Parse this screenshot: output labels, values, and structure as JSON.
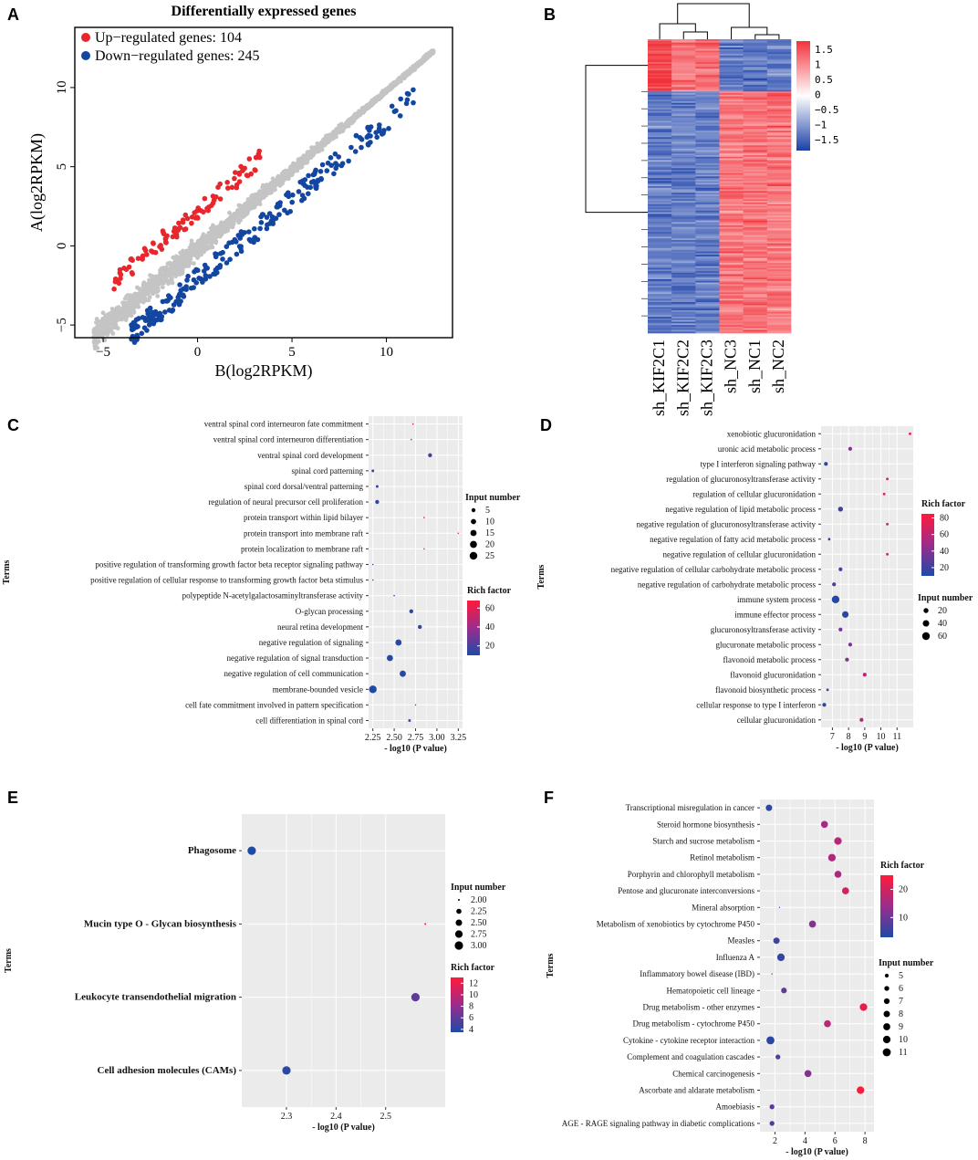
{
  "figure": {
    "panel_labels": [
      "A",
      "B",
      "C",
      "D",
      "E",
      "F"
    ],
    "colors": {
      "up": "#e8272d",
      "down": "#1246a0",
      "unchanged": "#c4c4c4",
      "panel_bg": "#ebebeb",
      "grid": "#ffffff",
      "rich_low": "#1e4aa5",
      "rich_mid": "#9b2c8c",
      "rich_high": "#ff1a3a"
    }
  },
  "chart_data": [
    {
      "id": "A",
      "type": "scatter",
      "title": "Differentially expressed genes",
      "xlabel": "B(log2RPKM)",
      "ylabel": "A(log2RPKM)",
      "xlim": [
        -6.5,
        13.5
      ],
      "ylim": [
        -5.8,
        13.8
      ],
      "xticks": [
        -5,
        0,
        5,
        10
      ],
      "yticks": [
        -5,
        0,
        5,
        10
      ],
      "legend": [
        {
          "label": "Up−regulated genes: 104",
          "color": "#e8272d"
        },
        {
          "label": "Down−regulated genes: 245",
          "color": "#1246a0"
        }
      ],
      "series": [
        {
          "name": "Up-regulated",
          "count": 104
        },
        {
          "name": "Down-regulated",
          "count": 245
        }
      ]
    },
    {
      "id": "B",
      "type": "heatmap",
      "columns": [
        "sh_KIF2C1",
        "sh_KIF2C2",
        "sh_KIF2C3",
        "sh_NC3",
        "sh_NC1",
        "sh_NC2"
      ],
      "colorbar_ticks": [
        "1.5",
        "1",
        "0.5",
        "0",
        "−0.5",
        "−1",
        "−1.5"
      ],
      "range": [
        -1.5,
        1.5
      ],
      "row_clusters": [
        {
          "name": "up-in-KIF2C",
          "share": 0.18,
          "group_means": [
            1.3,
            1.0,
            -1.0
          ]
        },
        {
          "name": "down-in-KIF2C",
          "share": 0.82,
          "group_means": [
            -1.0,
            1.0
          ]
        }
      ]
    },
    {
      "id": "C",
      "type": "scatter",
      "xlabel": "- log10 (P value)",
      "ylabel": "Terms",
      "xlim": [
        2.2,
        3.3
      ],
      "xticks": [
        "2.25",
        "2.50",
        "2.75",
        "3.00",
        "3.25"
      ],
      "xtick_values": [
        2.25,
        2.5,
        2.75,
        3.0,
        3.25
      ],
      "size_legend_title": "Input number",
      "size_legend": [
        5,
        10,
        15,
        20,
        25
      ],
      "size_range": [
        1,
        25
      ],
      "color_legend_title": "Rich factor",
      "color_ticks": [
        60,
        40,
        20
      ],
      "color_range": [
        10,
        68
      ],
      "terms": [
        "ventral spinal cord interneuron fate commitment",
        "ventral spinal cord interneuron differentiation",
        "ventral spinal cord development",
        "spinal cord patterning",
        "spinal cord dorsal/ventral patterning",
        "regulation of neural precursor cell proliferation",
        "protein transport within lipid bilayer",
        "protein transport into membrane raft",
        "protein localization to membrane raft",
        "positive regulation of transforming growth factor beta receptor signaling pathway",
        "positive regulation of cellular response to transforming growth factor beta stimulus",
        "polypeptide N-acetylgalactosaminyltransferase activity",
        "O-glycan processing",
        "neural retina development",
        "negative regulation of signaling",
        "negative regulation of signal transduction",
        "negative regulation of cell communication",
        "membrane-bounded vesicle",
        "cell fate commitment involved in pattern specification",
        "cell differentiation in spinal cord"
      ],
      "x": [
        2.72,
        2.7,
        2.92,
        2.25,
        2.3,
        2.3,
        2.85,
        3.25,
        2.85,
        2.25,
        2.25,
        2.5,
        2.7,
        2.8,
        2.55,
        2.45,
        2.6,
        2.25,
        2.75,
        2.68
      ],
      "size": [
        1,
        1,
        5,
        2,
        2,
        5,
        1,
        1,
        1,
        1,
        1,
        1,
        5,
        5,
        15,
        15,
        15,
        25,
        1,
        2
      ],
      "rich": [
        55,
        50,
        18,
        15,
        15,
        15,
        60,
        68,
        60,
        15,
        15,
        25,
        15,
        15,
        12,
        12,
        12,
        10,
        40,
        25
      ]
    },
    {
      "id": "D",
      "type": "scatter",
      "xlabel": "- log10 (P value)",
      "ylabel": "Terms",
      "xlim": [
        6.3,
        12
      ],
      "xticks": [
        "7",
        "8",
        "9",
        "10",
        "11"
      ],
      "xtick_values": [
        7,
        8,
        9,
        10,
        11
      ],
      "size_legend_title": "Input number",
      "size_legend": [
        20,
        40,
        60
      ],
      "size_range": [
        1,
        60
      ],
      "color_legend_title": "Rich factor",
      "color_ticks": [
        80,
        60,
        40,
        20
      ],
      "color_range": [
        10,
        85
      ],
      "terms": [
        "xenobiotic glucuronidation",
        "uronic acid metabolic process",
        "type I interferon signaling pathway",
        "regulation of glucuronosyltransferase activity",
        "regulation of cellular glucuronidation",
        "negative regulation of lipid metabolic process",
        "negative regulation of glucuronosyltransferase activity",
        "negative regulation of fatty acid metabolic process",
        "negative regulation of cellular glucuronidation",
        "negative regulation of cellular carbohydrate metabolic process",
        "negative regulation of carbohydrate metabolic process",
        "immune system process",
        "immune effector process",
        "glucuronosyltransferase activity",
        "glucuronate metabolic process",
        "flavonoid metabolic process",
        "flavonoid glucuronidation",
        "flavonoid biosynthetic process",
        "cellular response to type I interferon",
        "cellular glucuronidation"
      ],
      "x": [
        11.8,
        8.1,
        6.6,
        10.4,
        10.2,
        7.5,
        10.4,
        6.8,
        10.4,
        7.5,
        7.1,
        7.2,
        7.8,
        7.5,
        8.1,
        7.9,
        9.0,
        6.7,
        6.5,
        8.8
      ],
      "size": [
        3,
        10,
        10,
        3,
        3,
        20,
        3,
        3,
        3,
        10,
        10,
        60,
        40,
        10,
        10,
        10,
        10,
        3,
        10,
        10
      ],
      "rich": [
        80,
        40,
        15,
        75,
        75,
        20,
        75,
        25,
        75,
        20,
        25,
        12,
        15,
        35,
        40,
        40,
        60,
        25,
        15,
        55
      ]
    },
    {
      "id": "E",
      "type": "scatter",
      "xlabel": "- log10 (P value)",
      "ylabel": "Terms",
      "xlim": [
        2.21,
        2.62
      ],
      "xticks": [
        "2.3",
        "2.4",
        "2.5"
      ],
      "xtick_values": [
        2.3,
        2.4,
        2.5
      ],
      "size_legend_title": "Input number",
      "size_legend": [
        "2.00",
        "2.25",
        "2.50",
        "2.75",
        "3.00"
      ],
      "size_range": [
        2,
        3
      ],
      "color_legend_title": "Rich factor",
      "color_ticks": [
        12,
        10,
        8,
        6,
        4
      ],
      "color_range": [
        3.5,
        13
      ],
      "terms": [
        "Phagosome",
        "Mucin type O - Glycan biosynthesis",
        "Leukocyte transendothelial migration",
        "Cell adhesion molecules (CAMs)"
      ],
      "x": [
        2.23,
        2.58,
        2.56,
        2.3
      ],
      "size": [
        3,
        2,
        3,
        3
      ],
      "rich": [
        3.5,
        12.5,
        6,
        4
      ]
    },
    {
      "id": "F",
      "type": "scatter",
      "xlabel": "- log10 (P value)",
      "ylabel": "Terms",
      "xlim": [
        1.0,
        8.6
      ],
      "xticks": [
        "2",
        "4",
        "6",
        "8"
      ],
      "xtick_values": [
        2,
        4,
        6,
        8
      ],
      "size_legend_title": "Input number",
      "size_legend": [
        5,
        6,
        7,
        8,
        9,
        10,
        11
      ],
      "size_range": [
        4,
        11
      ],
      "color_legend_title": "Rich factor",
      "color_ticks": [
        20,
        10
      ],
      "color_range": [
        3,
        25
      ],
      "terms": [
        "Transcriptional misregulation in cancer",
        "Steroid hormone biosynthesis",
        "Starch and sucrose metabolism",
        "Retinol metabolism",
        "Porphyrin and chlorophyll metabolism",
        "Pentose and glucuronate interconversions",
        "Mineral absorption",
        "Metabolism of xenobiotics by cytochrome P450",
        "Measles",
        "Influenza A",
        "Inflammatory bowel disease (IBD)",
        "Hematopoietic cell lineage",
        "Drug metabolism - other enzymes",
        "Drug metabolism - cytochrome P450",
        "Cytokine - cytokine receptor interaction",
        "Complement and coagulation cascades",
        "Chemical carcinogenesis",
        "Ascorbate and aldarate metabolism",
        "Amoebiasis",
        "AGE - RAGE signaling pathway in diabetic complications"
      ],
      "x": [
        1.6,
        5.3,
        6.2,
        5.8,
        6.2,
        6.7,
        2.3,
        4.5,
        2.1,
        2.4,
        1.8,
        2.6,
        7.9,
        5.5,
        1.7,
        2.2,
        4.2,
        7.7,
        1.8,
        1.8
      ],
      "size": [
        8,
        9,
        10,
        10,
        9,
        9,
        4,
        9,
        8,
        10,
        4,
        7,
        10,
        9,
        11,
        6,
        9,
        10,
        6,
        6
      ],
      "rich": [
        4,
        15,
        17,
        16,
        16,
        20,
        8,
        12,
        6,
        5,
        8,
        9,
        22,
        17,
        4,
        8,
        12,
        25,
        8,
        7
      ]
    }
  ]
}
